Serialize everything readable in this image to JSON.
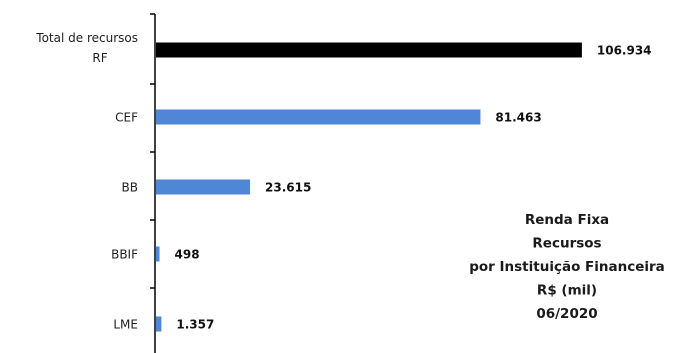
{
  "chart_data": {
    "type": "bar",
    "orientation": "horizontal",
    "categories": [
      "Total de recursos RF",
      "CEF",
      "BB",
      "BBIF",
      "LME"
    ],
    "category_lines": [
      [
        "Total de recursos",
        "RF"
      ],
      [
        "CEF"
      ],
      [
        "BB"
      ],
      [
        "BBIF"
      ],
      [
        "LME"
      ]
    ],
    "values": [
      106934,
      81463,
      23615,
      498,
      1357
    ],
    "value_labels": [
      "106.934",
      "81.463",
      "23.615",
      "498",
      "1.357"
    ],
    "bar_colors": [
      "#000000",
      "#4f86d6",
      "#4f86d6",
      "#4f86d6",
      "#4f86d6"
    ],
    "xlim": [
      0,
      115000
    ],
    "grid": false,
    "title_lines": [
      "Renda Fixa",
      "Recursos",
      "por Instituição Financeira",
      "R$ (mil)",
      "06/2020"
    ]
  }
}
